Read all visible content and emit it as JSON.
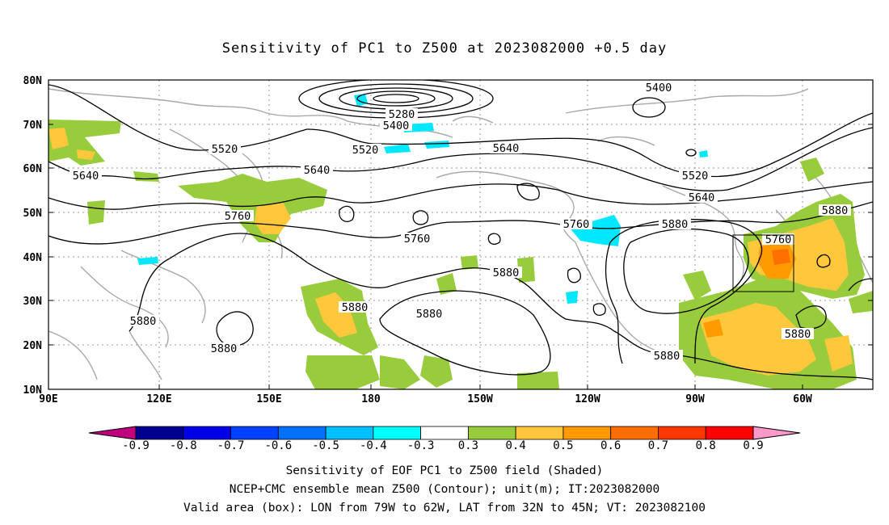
{
  "title": "Sensitivity of PC1 to Z500 at 2023082000 +0.5 day",
  "map": {
    "lat_labels": [
      "80N",
      "70N",
      "60N",
      "50N",
      "40N",
      "30N",
      "20N",
      "10N"
    ],
    "lon_labels": [
      "90E",
      "120E",
      "150E",
      "180",
      "150W",
      "120W",
      "90W",
      "60W"
    ],
    "contour_labels": [
      "5280",
      "5400",
      "5400",
      "5520",
      "5520",
      "5520",
      "5640",
      "5640",
      "5640",
      "5640",
      "5760",
      "5760",
      "5760",
      "5760",
      "5880",
      "5880",
      "5880",
      "5880",
      "5880",
      "5880",
      "5880",
      "5880",
      "5880"
    ],
    "box": {
      "lon_from": "79W",
      "lon_to": "62W",
      "lat_from": "32N",
      "lat_to": "45N"
    }
  },
  "colorbar": {
    "labels": [
      "-0.9",
      "-0.8",
      "-0.7",
      "-0.6",
      "-0.5",
      "-0.4",
      "-0.3",
      "0.3",
      "0.4",
      "0.5",
      "0.6",
      "0.7",
      "0.8",
      "0.9"
    ],
    "colors": [
      "#c0007f",
      "#00008f",
      "#0000e8",
      "#0040ff",
      "#0070ff",
      "#00c0ff",
      "#00ffff",
      "#ffffff",
      "#98cc3c",
      "#ffc83c",
      "#ff9a00",
      "#ff6e00",
      "#ff3800",
      "#ff0000",
      "#ff99cc"
    ]
  },
  "captions": {
    "line1": "Sensitivity of EOF PC1 to Z500 field (Shaded)",
    "line2": "NCEP+CMC ensemble mean Z500 (Contour); unit(m); IT:2023082000",
    "line3": "Valid area (box): LON from 79W to 62W, LAT from 32N to 45N; VT: 2023082100"
  }
}
